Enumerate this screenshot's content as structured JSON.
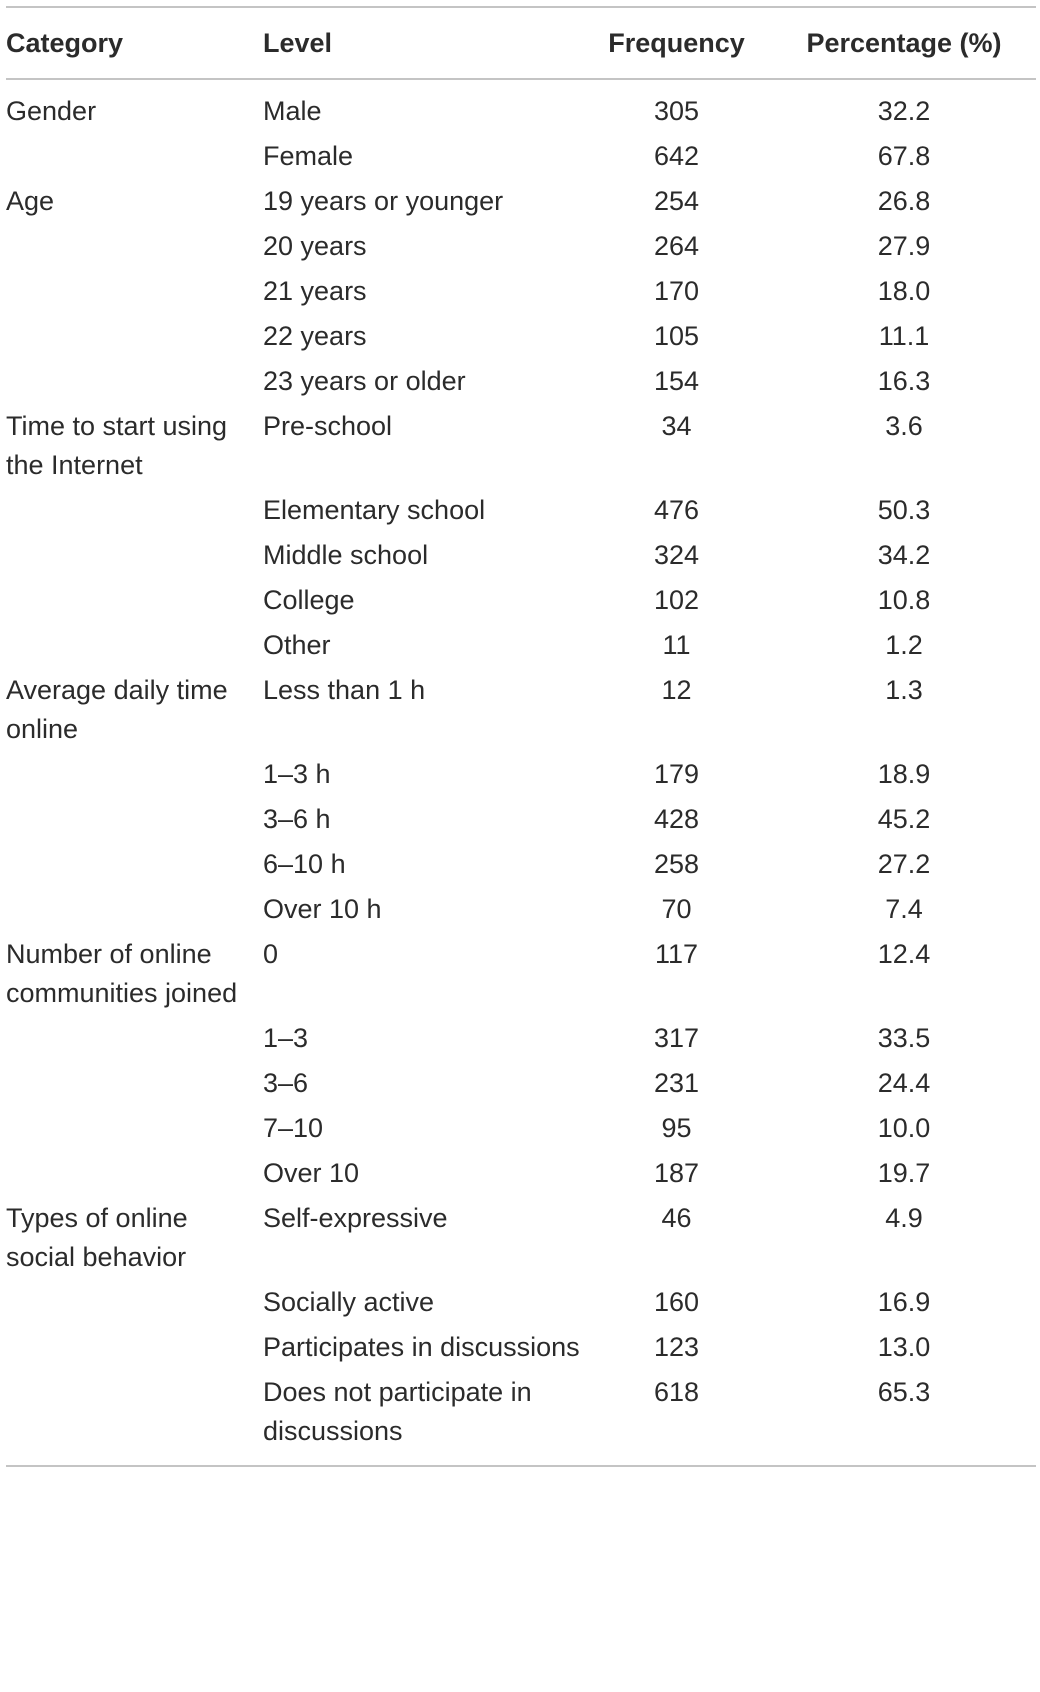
{
  "table": {
    "headers": {
      "category": "Category",
      "level": "Level",
      "frequency": "Frequency",
      "percentage": "Percentage (%)"
    },
    "rows": [
      {
        "category": "Gender",
        "level": "Male",
        "frequency": "305",
        "percentage": "32.2"
      },
      {
        "category": "",
        "level": "Female",
        "frequency": "642",
        "percentage": "67.8"
      },
      {
        "category": "Age",
        "level": "19 years or younger",
        "frequency": "254",
        "percentage": "26.8"
      },
      {
        "category": "",
        "level": "20 years",
        "frequency": "264",
        "percentage": "27.9"
      },
      {
        "category": "",
        "level": "21 years",
        "frequency": "170",
        "percentage": "18.0"
      },
      {
        "category": "",
        "level": "22 years",
        "frequency": "105",
        "percentage": "11.1"
      },
      {
        "category": "",
        "level": "23 years or older",
        "frequency": "154",
        "percentage": "16.3"
      },
      {
        "category": "Time to start using the Internet",
        "level": "Pre-school",
        "frequency": "34",
        "percentage": "3.6"
      },
      {
        "category": "",
        "level": "Elementary school",
        "frequency": "476",
        "percentage": "50.3"
      },
      {
        "category": "",
        "level": "Middle school",
        "frequency": "324",
        "percentage": "34.2"
      },
      {
        "category": "",
        "level": "College",
        "frequency": "102",
        "percentage": "10.8"
      },
      {
        "category": "",
        "level": "Other",
        "frequency": "11",
        "percentage": "1.2"
      },
      {
        "category": "Average daily time online",
        "level": "Less than 1 h",
        "frequency": "12",
        "percentage": "1.3"
      },
      {
        "category": "",
        "level": "1–3 h",
        "frequency": "179",
        "percentage": "18.9"
      },
      {
        "category": "",
        "level": "3–6 h",
        "frequency": "428",
        "percentage": "45.2"
      },
      {
        "category": "",
        "level": "6–10 h",
        "frequency": "258",
        "percentage": "27.2"
      },
      {
        "category": "",
        "level": "Over 10 h",
        "frequency": "70",
        "percentage": "7.4"
      },
      {
        "category": "Number of online communities joined",
        "level": "0",
        "frequency": "117",
        "percentage": "12.4"
      },
      {
        "category": "",
        "level": "1–3",
        "frequency": "317",
        "percentage": "33.5"
      },
      {
        "category": "",
        "level": "3–6",
        "frequency": "231",
        "percentage": "24.4"
      },
      {
        "category": "",
        "level": "7–10",
        "frequency": "95",
        "percentage": "10.0"
      },
      {
        "category": "",
        "level": "Over 10",
        "frequency": "187",
        "percentage": "19.7"
      },
      {
        "category": "Types of online social behavior",
        "level": "Self-expressive",
        "frequency": "46",
        "percentage": "4.9"
      },
      {
        "category": "",
        "level": "Socially active",
        "frequency": "160",
        "percentage": "16.9"
      },
      {
        "category": "",
        "level": "Participates in discussions",
        "frequency": "123",
        "percentage": "13.0"
      },
      {
        "category": "",
        "level": "Does not participate in discussions",
        "frequency": "618",
        "percentage": "65.3"
      }
    ]
  }
}
